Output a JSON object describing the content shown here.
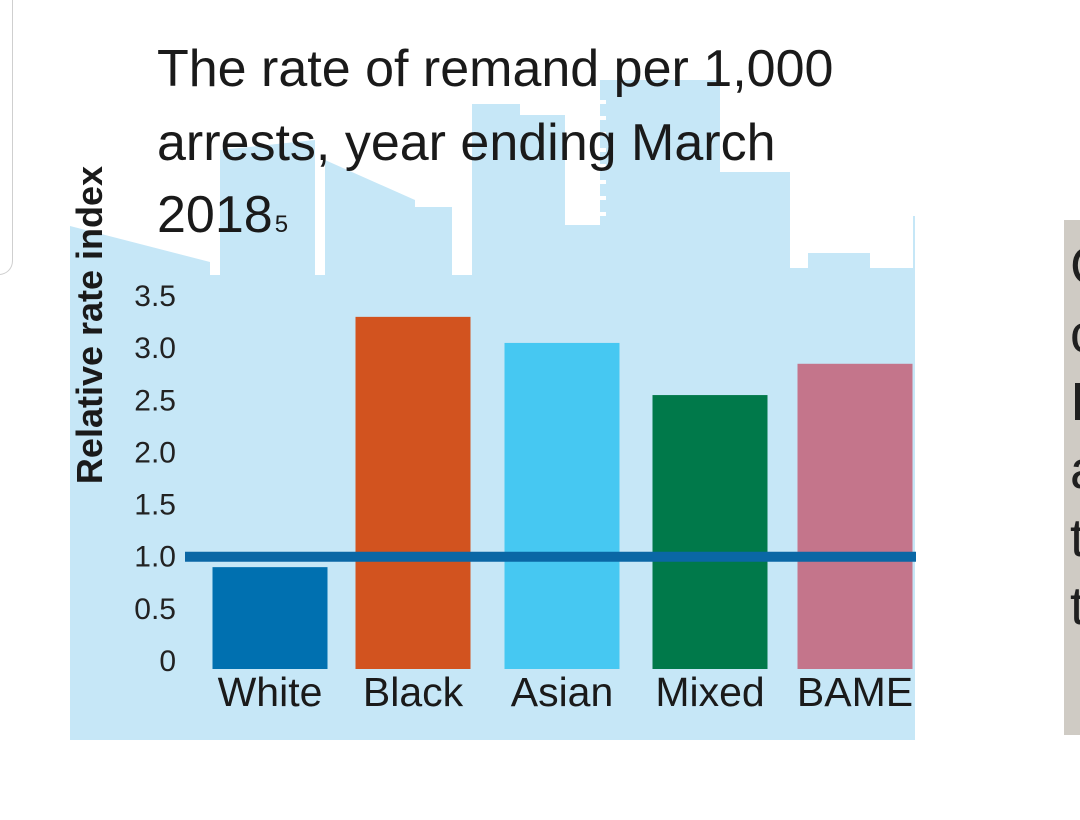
{
  "chart_data": {
    "type": "bar",
    "title": "The rate of remand per 1,000 arrests, year ending March 2018",
    "title_lines": [
      "The rate of remand per 1,000",
      "arrests, year ending March",
      "2018"
    ],
    "title_footnote": "5",
    "ylabel": "Relative rate index",
    "xlabel": "",
    "categories": [
      "White",
      "Black",
      "Asian",
      "Mixed",
      "BAME"
    ],
    "values": [
      0.9,
      3.3,
      3.05,
      2.55,
      2.85
    ],
    "bar_colors": [
      "#0070b0",
      "#d2531f",
      "#46c8f2",
      "#00794a",
      "#c4758b"
    ],
    "yticks": [
      "0",
      "0.5",
      "1.0",
      "1.5",
      "2.0",
      "2.5",
      "3.0",
      "3.5"
    ],
    "ylim": [
      0,
      3.5
    ],
    "reference_line": {
      "value": 1.0,
      "color": "#0a67a5"
    },
    "background_color": "#c6e7f7",
    "grid": false,
    "legend": "none"
  },
  "side_panel": {
    "letters": "C\nc\nI\na\nt\nt"
  }
}
